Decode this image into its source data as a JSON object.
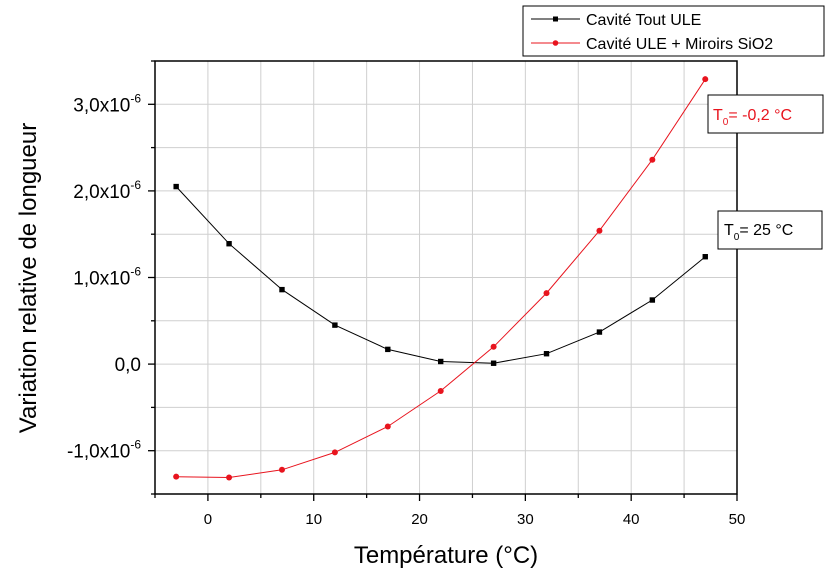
{
  "chart_data": {
    "type": "line",
    "xlabel": "Température (°C)",
    "ylabel": "Variation relative de longueur",
    "xlim": [
      -5,
      50
    ],
    "ylim": [
      -1.5e-06,
      3.5e-06
    ],
    "xticks": [
      0,
      10,
      20,
      30,
      40,
      50
    ],
    "xtick_labels": [
      "0",
      "10",
      "20",
      "30",
      "40",
      "50"
    ],
    "yticks": [
      {
        "value": 3e-06,
        "mantissa": "3,0x10",
        "exp": "-6"
      },
      {
        "value": 2e-06,
        "mantissa": "2,0x10",
        "exp": "-6"
      },
      {
        "value": 1e-06,
        "mantissa": "1,0x10",
        "exp": "-6"
      },
      {
        "value": 0,
        "mantissa": "0,0",
        "exp": ""
      },
      {
        "value": -1e-06,
        "mantissa": "-1,0x10",
        "exp": "-6"
      }
    ],
    "grid": true,
    "legend_position": "top-right",
    "series": [
      {
        "name": "Cavité Tout ULE",
        "color": "#000000",
        "marker": "square",
        "x": [
          -3,
          2,
          7,
          12,
          17,
          22,
          27,
          32,
          37,
          42,
          47
        ],
        "y": [
          2.05e-06,
          1.39e-06,
          8.6e-07,
          4.5e-07,
          1.7e-07,
          3e-08,
          1e-08,
          1.2e-07,
          3.7e-07,
          7.4e-07,
          1.24e-06
        ]
      },
      {
        "name": "Cavité ULE + Miroirs SiO2",
        "color": "#e8141e",
        "marker": "circle",
        "x": [
          -3,
          2,
          7,
          12,
          17,
          22,
          27,
          32,
          37,
          42,
          47
        ],
        "y": [
          -1.3e-06,
          -1.31e-06,
          -1.22e-06,
          -1.02e-06,
          -7.2e-07,
          -3.1e-07,
          2e-07,
          8.2e-07,
          1.54e-06,
          2.36e-06,
          3.29e-06
        ]
      }
    ],
    "annotations": [
      {
        "base": "T",
        "sub": "0",
        "text": "= -0,2 °C",
        "color": "#e8141e",
        "series": 1
      },
      {
        "base": "T",
        "sub": "0",
        "text": "= 25 °C",
        "color": "#000000",
        "series": 0
      }
    ]
  }
}
